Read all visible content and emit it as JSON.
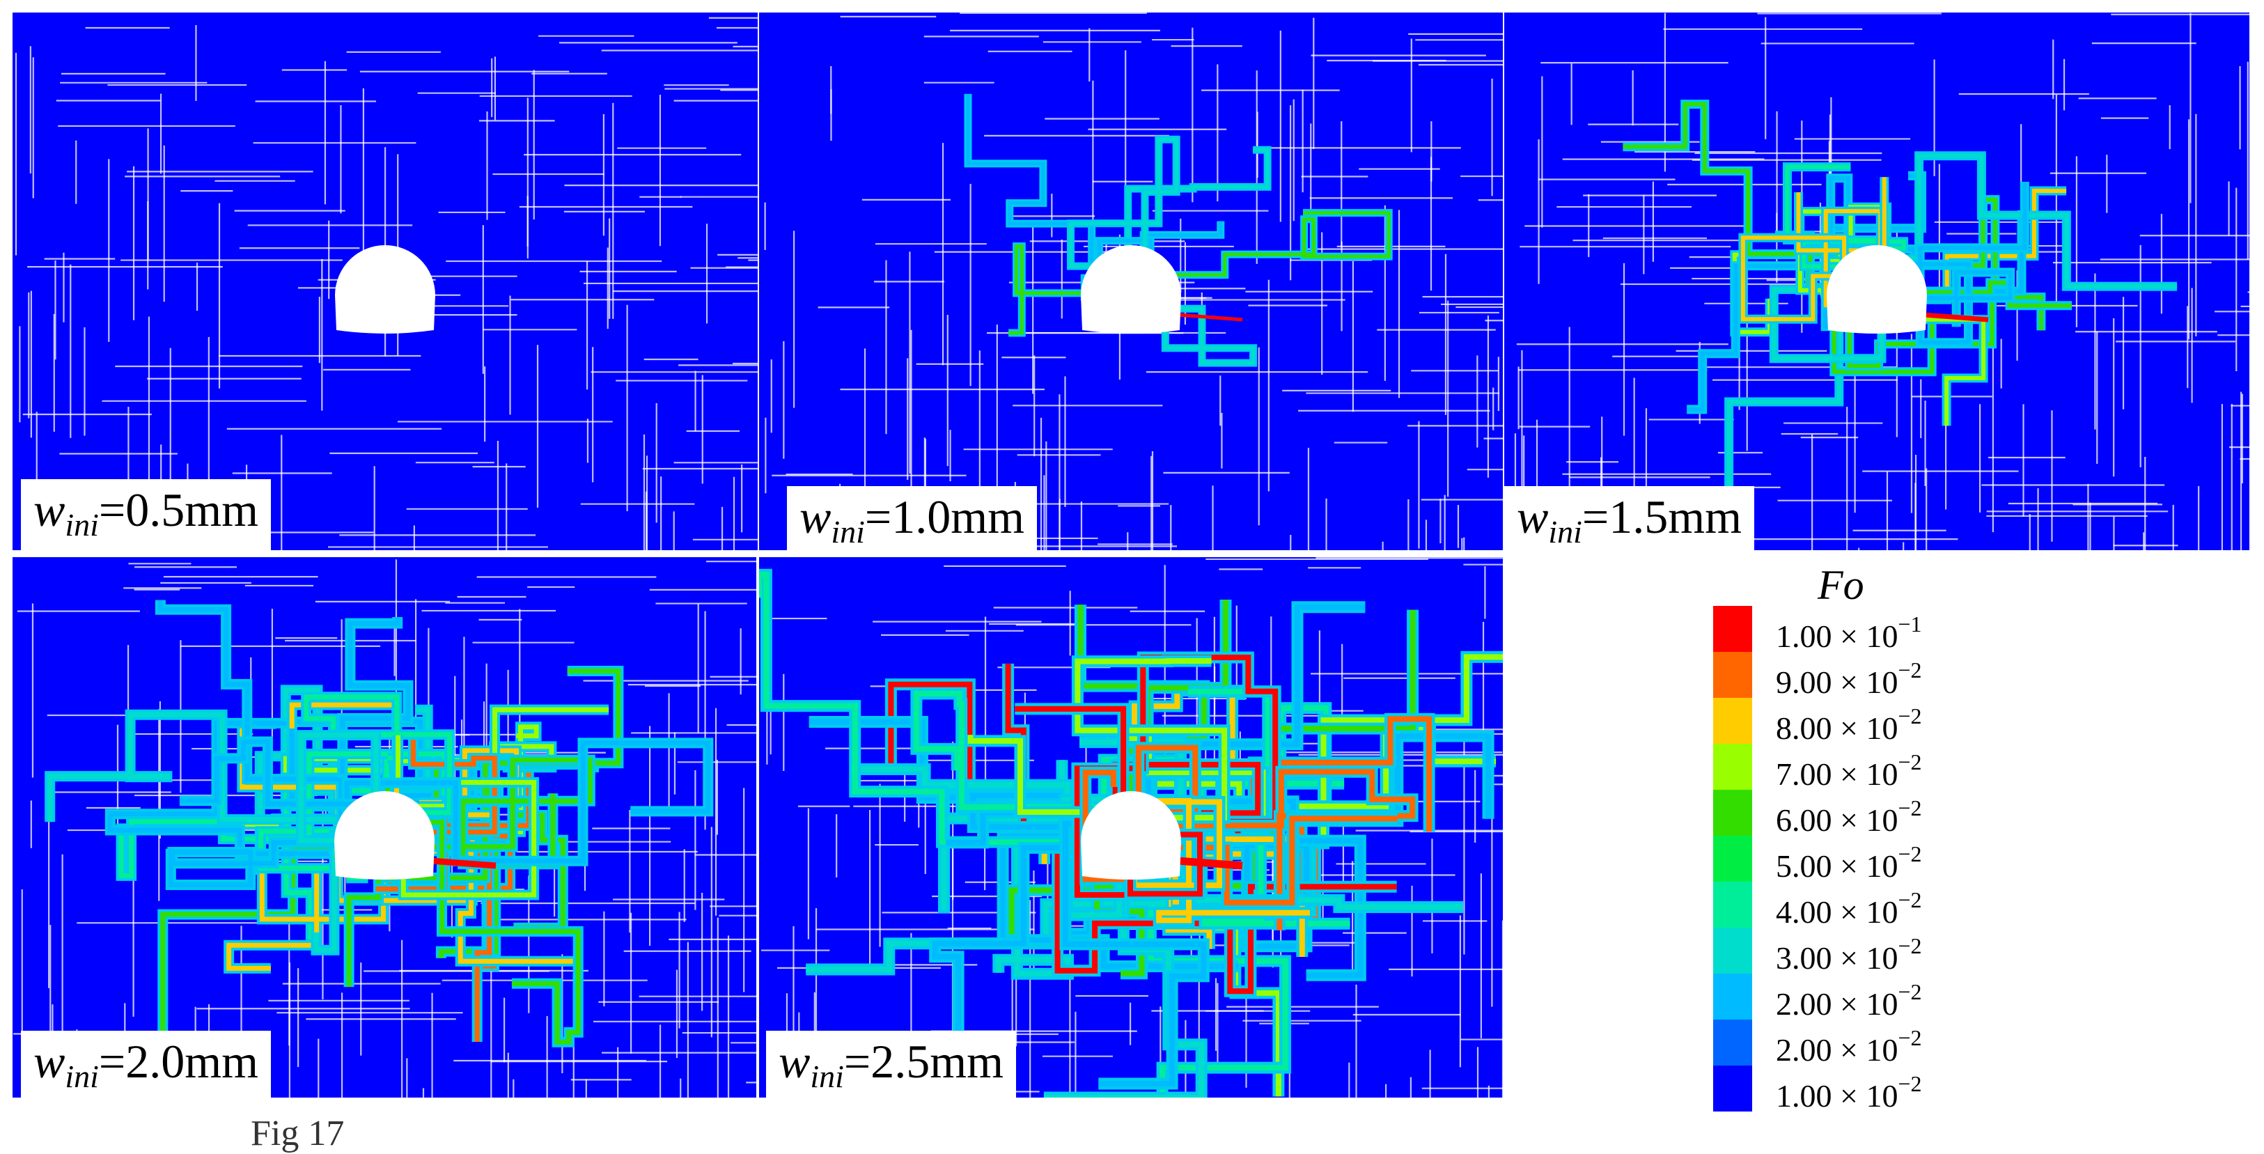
{
  "panels": [
    {
      "label_prefix": "w",
      "label_sub": "ini",
      "label_value": "=0.5mm",
      "level": 0
    },
    {
      "label_prefix": "w",
      "label_sub": "ini",
      "label_value": "=1.0mm",
      "level": 1
    },
    {
      "label_prefix": "w",
      "label_sub": "ini",
      "label_value": "=1.5mm",
      "level": 2
    },
    {
      "label_prefix": "w",
      "label_sub": "ini",
      "label_value": "=2.0mm",
      "level": 3
    },
    {
      "label_prefix": "w",
      "label_sub": "ini",
      "label_value": "=2.5mm",
      "level": 4
    }
  ],
  "legend": {
    "title": "Fo",
    "entries": [
      {
        "mantissa": "1.00 × 10",
        "exponent": "−1",
        "color": "#ff0000"
      },
      {
        "mantissa": "9.00 × 10",
        "exponent": "−2",
        "color": "#ff6600"
      },
      {
        "mantissa": "8.00 × 10",
        "exponent": "−2",
        "color": "#ffcc00"
      },
      {
        "mantissa": "7.00 × 10",
        "exponent": "−2",
        "color": "#99ff00"
      },
      {
        "mantissa": "6.00 × 10",
        "exponent": "−2",
        "color": "#33dd00"
      },
      {
        "mantissa": "5.00 × 10",
        "exponent": "−2",
        "color": "#00ee44"
      },
      {
        "mantissa": "4.00 × 10",
        "exponent": "−2",
        "color": "#00ee99"
      },
      {
        "mantissa": "3.00 × 10",
        "exponent": "−2",
        "color": "#00ddcc"
      },
      {
        "mantissa": "2.00 × 10",
        "exponent": "−2",
        "color": "#00bbff"
      },
      {
        "mantissa": "2.00 × 10",
        "exponent": "−2",
        "color": "#0066ff"
      },
      {
        "mantissa": "1.00 × 10",
        "exponent": "−2",
        "color": "#0000ff"
      }
    ]
  },
  "caption_fragment": "Fig 17",
  "colors": {
    "background": "#0000ff",
    "fracture": "#ffffff",
    "tunnel": "#ffffff"
  }
}
